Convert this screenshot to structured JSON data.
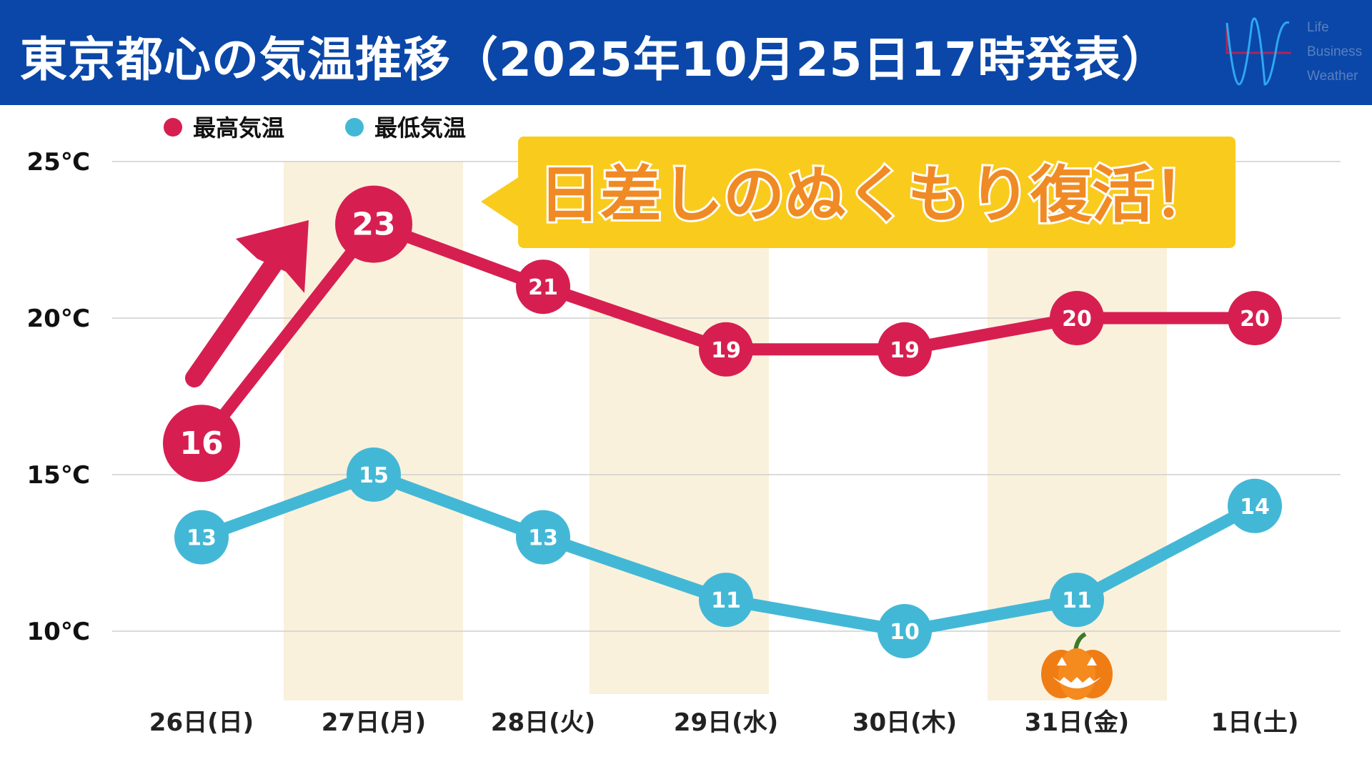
{
  "header": {
    "title": "東京都心の気温推移（2025年10月25日17時発表）"
  },
  "logo": {
    "words": [
      "Life",
      "Business",
      "Weather"
    ]
  },
  "callout": {
    "text": "日差しのぬくもり復活！"
  },
  "colors": {
    "header": "#0a47a8",
    "high": "#d61f50",
    "low": "#43b8d6",
    "band": "#faf1dc",
    "callout": "#f9cb1c",
    "callout_text": "#f08a24"
  },
  "chart_data": {
    "type": "line",
    "title": "東京都心の気温推移（2025年10月25日17時発表）",
    "categories": [
      "26日(日)",
      "27日(月)",
      "28日(火)",
      "29日(水)",
      "30日(木)",
      "31日(金)",
      "1日(土)"
    ],
    "series": [
      {
        "name": "最高気温",
        "values": [
          16,
          23,
          21,
          19,
          19,
          20,
          20
        ],
        "color": "#d61f50"
      },
      {
        "name": "最低気温",
        "values": [
          13,
          15,
          13,
          11,
          10,
          11,
          14
        ],
        "color": "#43b8d6"
      }
    ],
    "yticks": [
      "10℃",
      "15℃",
      "20℃",
      "25℃"
    ],
    "ytick_values": [
      10,
      15,
      20,
      25
    ],
    "ylim": [
      10,
      25
    ],
    "legend": "top-left",
    "grid": true,
    "annotations": [
      "日差しのぬくもり復活！"
    ]
  }
}
